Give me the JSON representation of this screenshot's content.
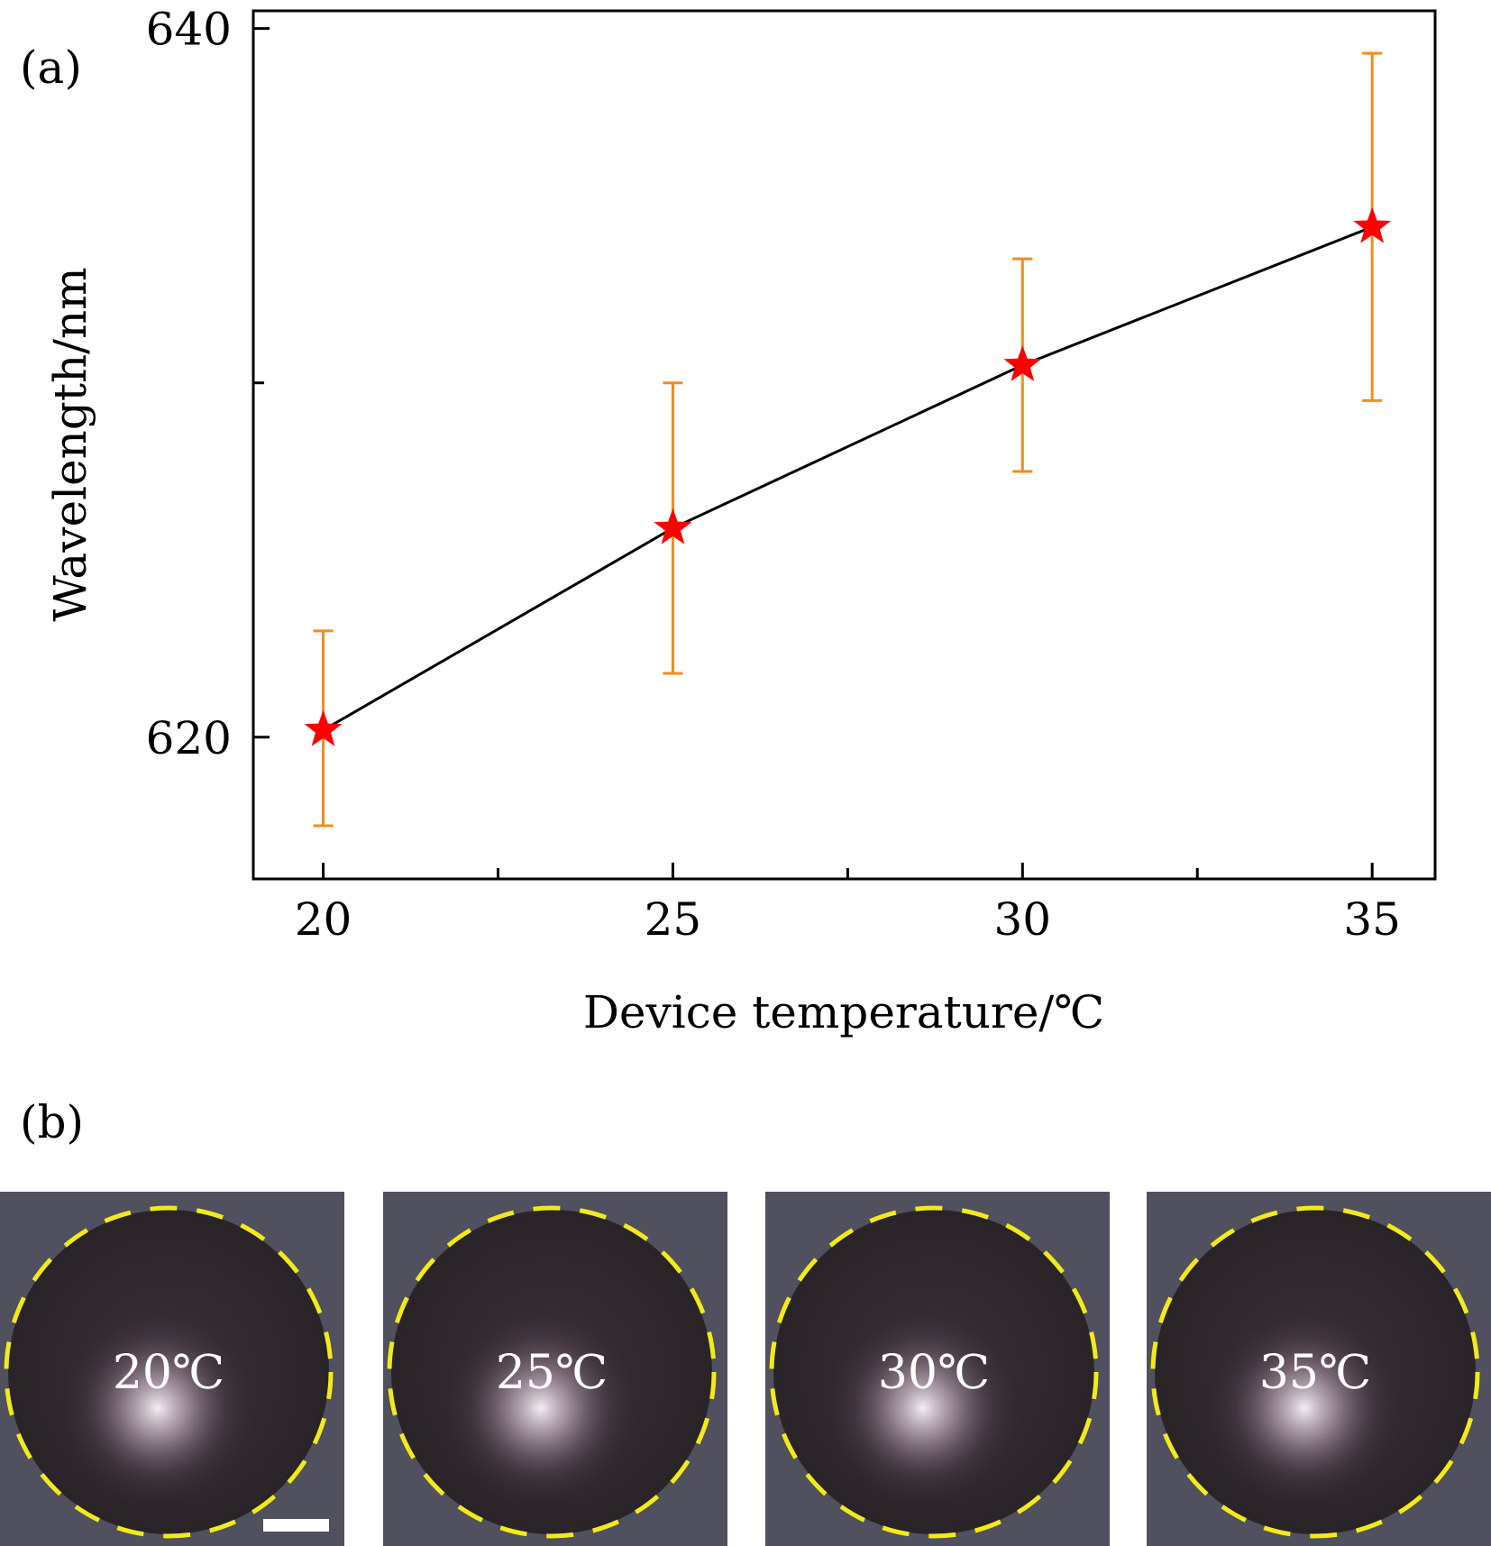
{
  "panel_a_label": "(a)",
  "panel_b_label": "(b)",
  "chart_data": {
    "type": "line",
    "title": "",
    "xlabel": "Device temperature/℃",
    "ylabel": "Wavelength/nm",
    "xlim": [
      19,
      35.9
    ],
    "ylim": [
      616,
      640.5
    ],
    "x_ticks_labeled": [
      20,
      25,
      30,
      35
    ],
    "x_ticks_minor": [
      22.5,
      27.5,
      32.5
    ],
    "y_ticks_labeled": [
      620,
      640
    ],
    "y_ticks_minor": [
      630
    ],
    "grid": false,
    "legend": "none",
    "series": [
      {
        "x": [
          20,
          25,
          30,
          35
        ],
        "y": [
          620.2,
          625.9,
          630.5,
          634.4
        ],
        "err_low": [
          617.5,
          621.8,
          627.5,
          629.5
        ],
        "err_high": [
          623.0,
          630.0,
          633.5,
          639.3
        ],
        "line_color": "#000000",
        "marker": "star",
        "marker_color": "#ff0000",
        "error_color": "#f28c1e"
      }
    ]
  },
  "photos": [
    {
      "label": "20℃",
      "scale_bar": true
    },
    {
      "label": "25℃",
      "scale_bar": false
    },
    {
      "label": "30℃",
      "scale_bar": false
    },
    {
      "label": "35℃",
      "scale_bar": false
    }
  ],
  "colors": {
    "photo_background": "#50505e",
    "dashed_circle": "#f2ea1a",
    "scale_bar": "#ffffff"
  }
}
